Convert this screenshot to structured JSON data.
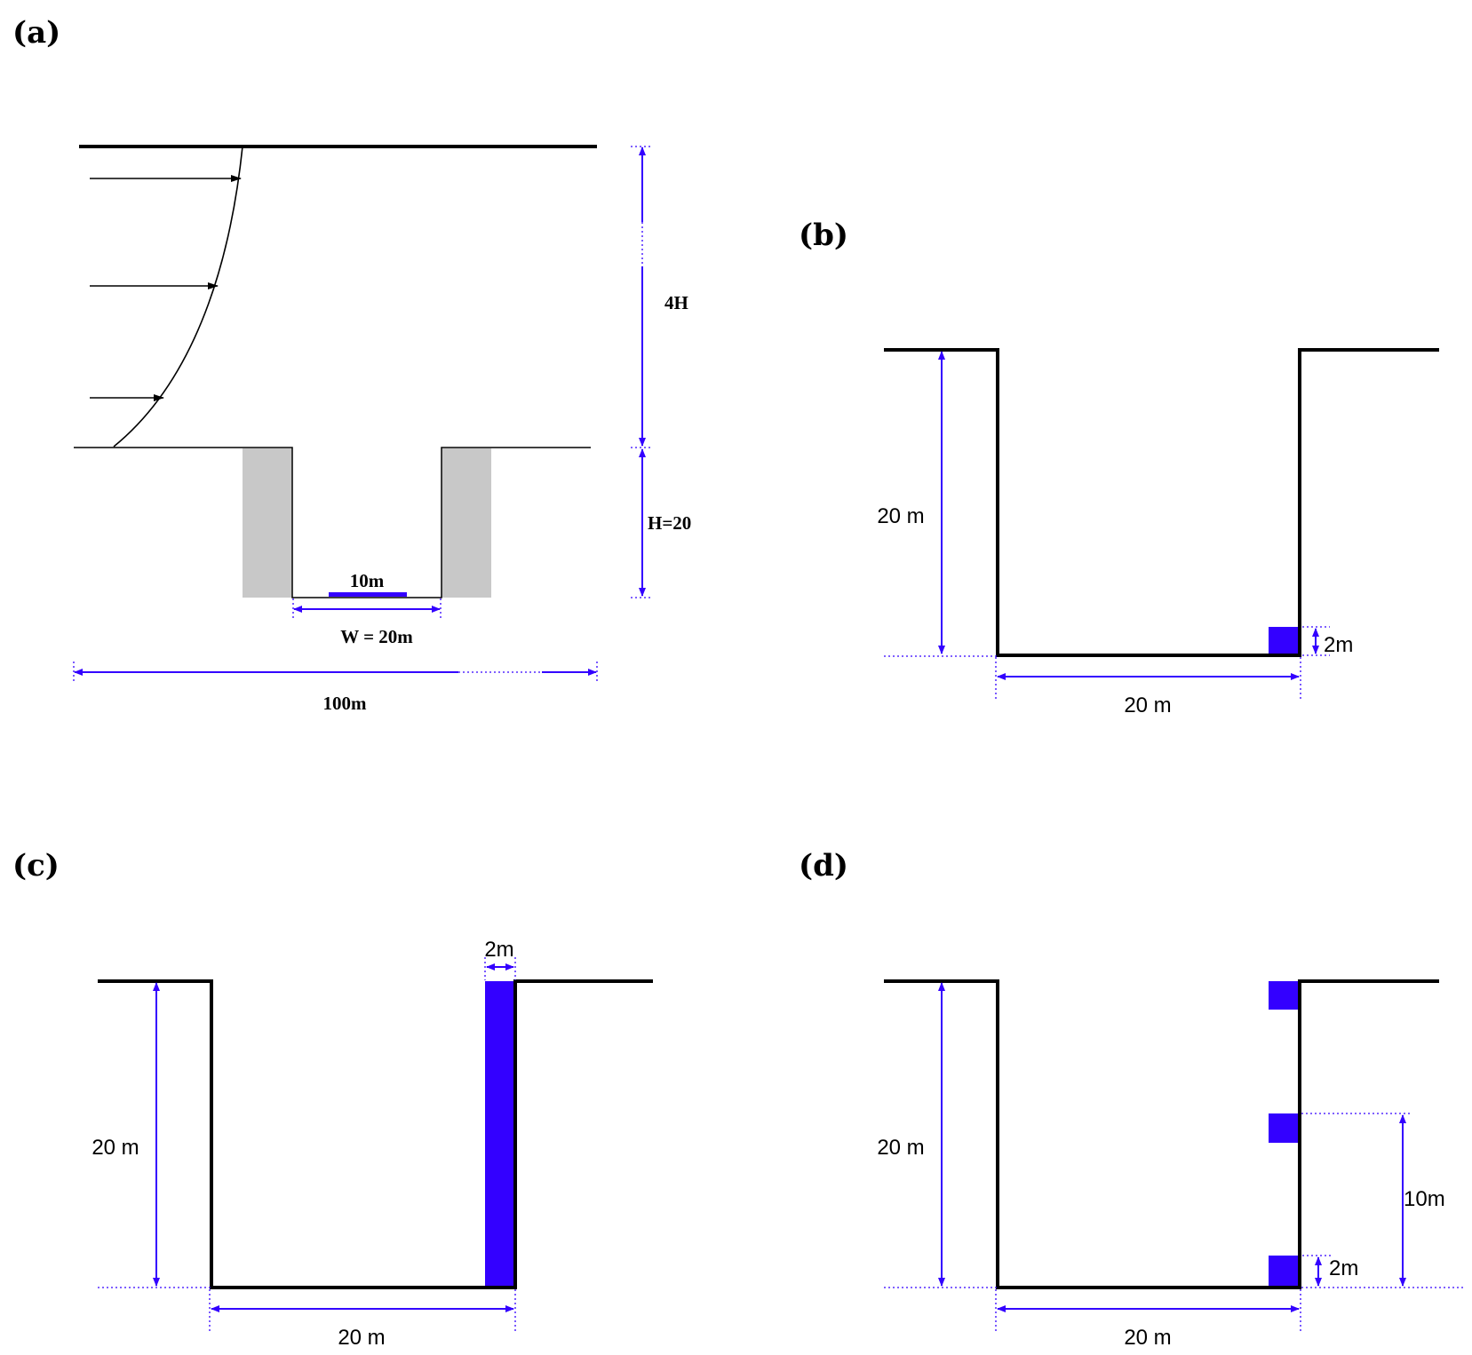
{
  "panels": {
    "a": {
      "label": "(a)",
      "dim_height_top": "4H",
      "dim_height_bottom": "H=20",
      "source_width": "10m",
      "canyon_width": "W = 20m",
      "domain_width": "100m"
    },
    "b": {
      "label": "(b)",
      "dim_height": "20 m",
      "dim_width": "20 m",
      "dim_block": "2m"
    },
    "c": {
      "label": "(c)",
      "dim_height": "20 m",
      "dim_width": "20 m",
      "dim_block": "2m"
    },
    "d": {
      "label": "(d)",
      "dim_height": "20 m",
      "dim_width": "20 m",
      "dim_block": "2m",
      "dim_spacing": "10m"
    }
  },
  "colors": {
    "dimension": "#3300ff",
    "wall_fill": "#c8c8c8",
    "outline": "#000000"
  }
}
